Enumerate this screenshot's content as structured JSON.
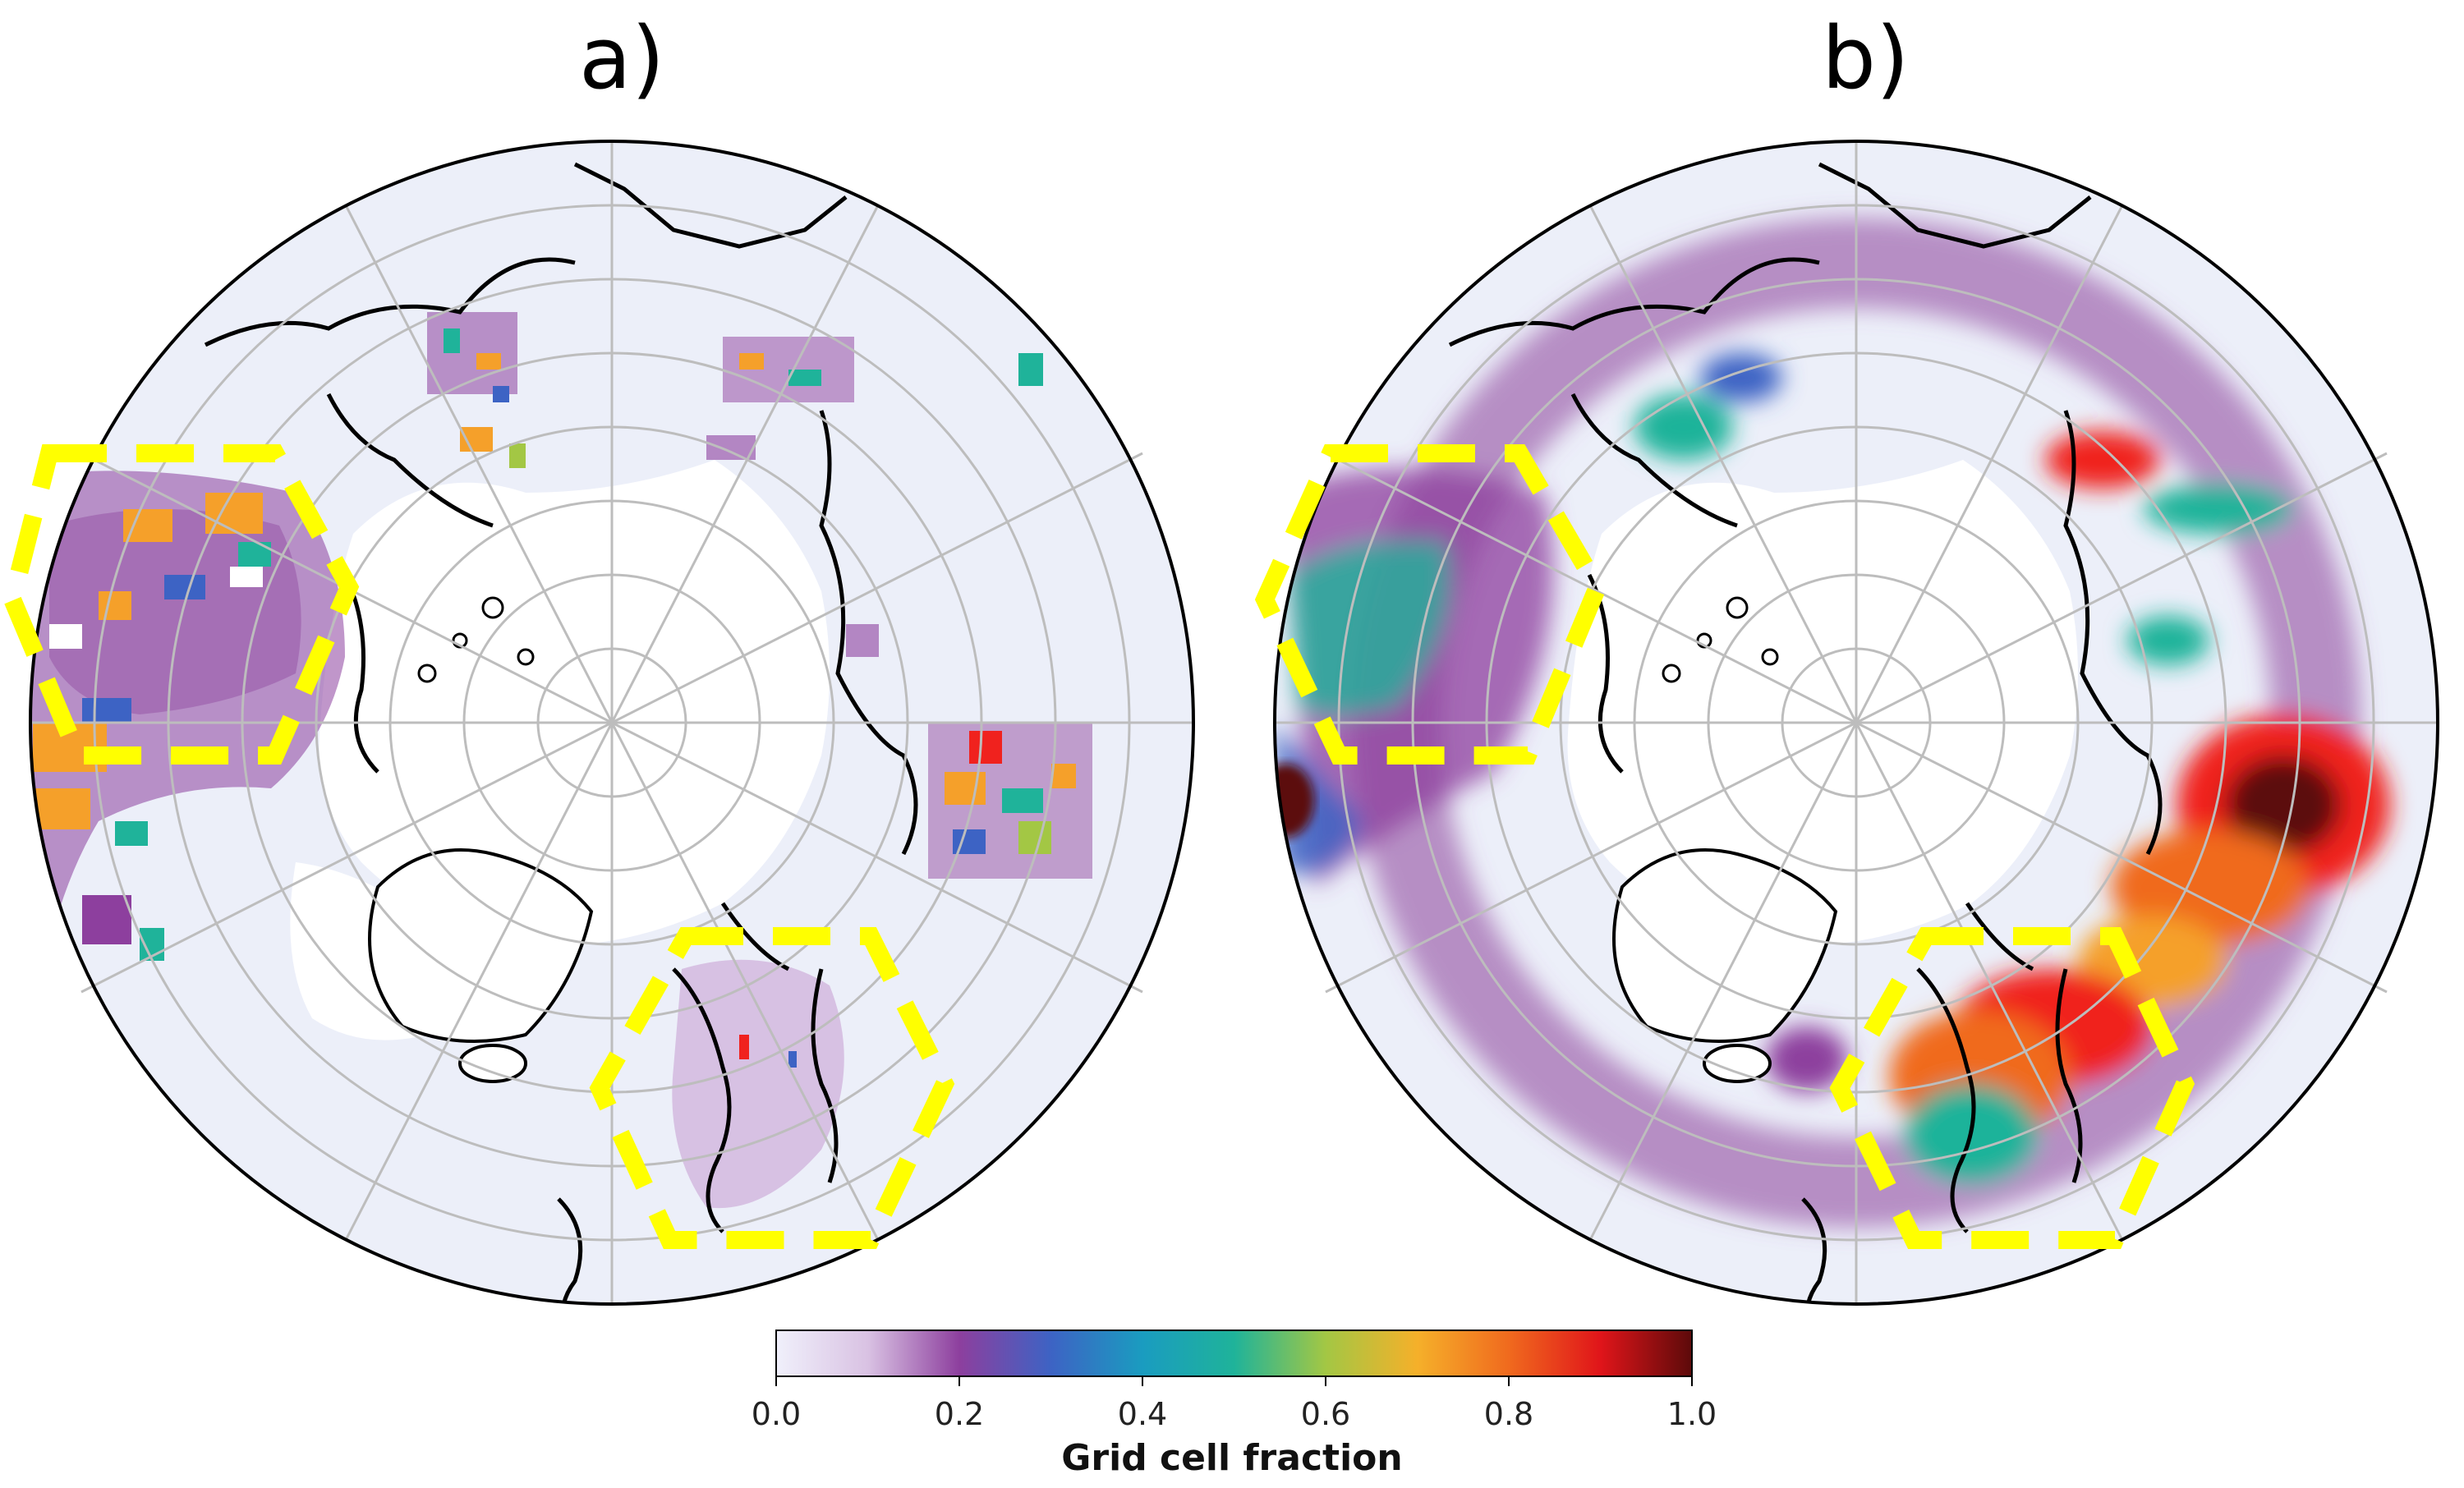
{
  "panels": [
    {
      "label": "a)",
      "highlight_regions": [
        "western-russia-kazakhstan",
        "scandinavia"
      ]
    },
    {
      "label": "b)",
      "highlight_regions": [
        "western-russia-kazakhstan",
        "scandinavia"
      ]
    }
  ],
  "colorbar": {
    "label": "Grid cell fraction",
    "ticks": [
      "0.0",
      "0.2",
      "0.4",
      "0.6",
      "0.8",
      "1.0"
    ],
    "range": [
      0.0,
      1.0
    ],
    "colors": [
      "#f0f0fb",
      "#c9a2d4",
      "#8d3f9e",
      "#3d63c4",
      "#1a9cc0",
      "#1fb39a",
      "#a3c744",
      "#f59a2a",
      "#f0221e",
      "#5c0a0a"
    ]
  },
  "colors": {
    "ocean_fill": "#e9ecf8",
    "land_tint": "#f4f4f9",
    "highlight": "#ffff00",
    "coastline": "#000000",
    "graticule": "#bdbdbd"
  }
}
